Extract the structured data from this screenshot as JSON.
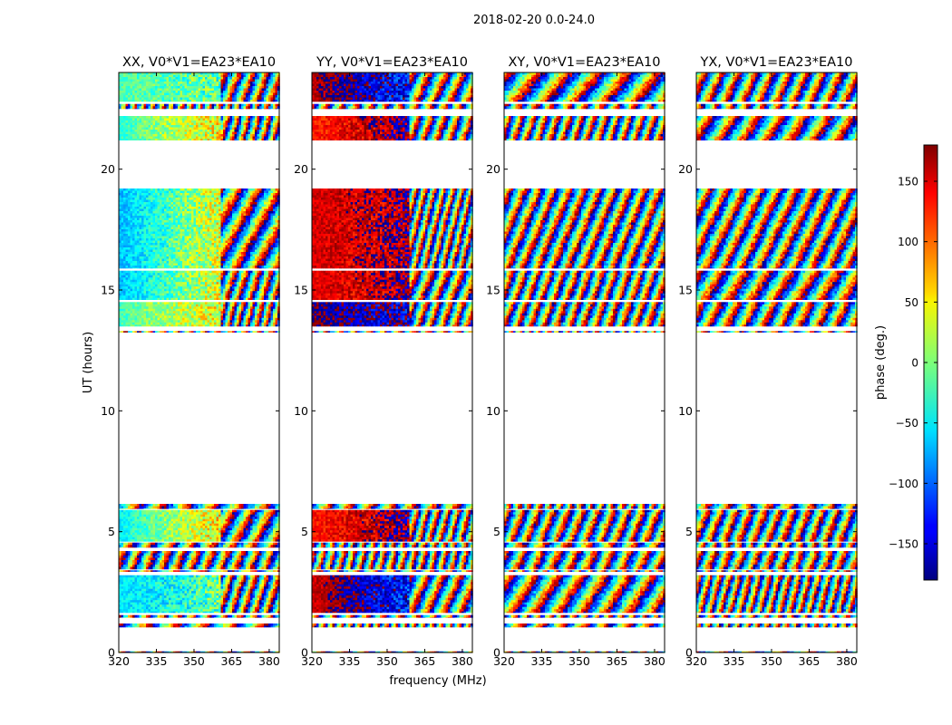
{
  "suptitle": "2018-02-20 0.0-24.0",
  "chart_data": {
    "type": "heatmap",
    "title": "2018-02-20 0.0-24.0",
    "xlabel": "frequency (MHz)",
    "ylabel": "UT (hours)",
    "xlim": [
      320,
      384
    ],
    "ylim": [
      0,
      24
    ],
    "xticks": [
      320,
      335,
      350,
      365,
      380
    ],
    "yticks": [
      0,
      5,
      10,
      15,
      20
    ],
    "colormap": "jet",
    "colorbar": {
      "label": "phase (deg.)",
      "range": [
        -180,
        180
      ],
      "ticks": [
        -150,
        -100,
        -50,
        0,
        50,
        100,
        150
      ],
      "tick_labels": [
        "−150",
        "−100",
        "−50",
        "0",
        "50",
        "100",
        "150"
      ]
    },
    "panels": [
      {
        "title": "XX, V0*V1=EA23*EA10",
        "coherent_fraction": 0.62,
        "coherent_offset": -40
      },
      {
        "title": "YY, V0*V1=EA23*EA10",
        "coherent_fraction": 0.6,
        "coherent_offset": 150
      },
      {
        "title": "XY, V0*V1=EA23*EA10",
        "coherent_fraction": 0.0,
        "coherent_offset": 0
      },
      {
        "title": "YX, V0*V1=EA23*EA10",
        "coherent_fraction": 0.0,
        "coherent_offset": 0
      }
    ],
    "data_bands_ut_hours": [
      [
        0.0,
        0.05
      ],
      [
        1.05,
        1.2
      ],
      [
        1.45,
        1.55
      ],
      [
        1.65,
        3.2
      ],
      [
        3.35,
        3.4
      ],
      [
        3.45,
        4.2
      ],
      [
        4.35,
        4.55
      ],
      [
        4.6,
        5.9
      ],
      [
        5.95,
        6.15
      ],
      [
        13.25,
        13.3
      ],
      [
        13.5,
        14.5
      ],
      [
        14.6,
        15.8
      ],
      [
        15.9,
        19.2
      ],
      [
        21.2,
        22.2
      ],
      [
        22.5,
        22.7
      ],
      [
        22.8,
        24.0
      ]
    ]
  }
}
